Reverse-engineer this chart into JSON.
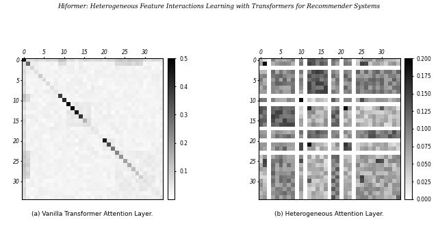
{
  "title": "Hiformer: Heterogeneous Feature Interactions Learning with Transformers for Recommender Systems",
  "subtitle_a": "(a) Vanilla Transformer Attention Layer.",
  "subtitle_b": "(b) Heterogeneous Attention Layer.",
  "n": 35,
  "cmap": "gray_r",
  "vmax_a": 0.5,
  "vmin_a": 0.0,
  "vmax_b": 0.2,
  "vmin_b": 0.0,
  "colorbar_ticks_a": [
    0.1,
    0.2,
    0.3,
    0.4,
    0.5
  ],
  "colorbar_ticks_b": [
    0.0,
    0.025,
    0.05,
    0.075,
    0.1,
    0.125,
    0.15,
    0.175,
    0.2
  ],
  "xtick_locs": [
    0,
    5,
    10,
    15,
    20,
    25,
    30
  ],
  "ytick_locs": [
    0,
    5,
    10,
    15,
    20,
    25,
    30
  ],
  "background": "#ffffff",
  "feature_groups": [
    {
      "start": 0,
      "end": 2
    },
    {
      "start": 2,
      "end": 9
    },
    {
      "start": 9,
      "end": 11
    },
    {
      "start": 11,
      "end": 17
    },
    {
      "start": 17,
      "end": 20
    },
    {
      "start": 20,
      "end": 23
    },
    {
      "start": 23,
      "end": 35
    }
  ]
}
